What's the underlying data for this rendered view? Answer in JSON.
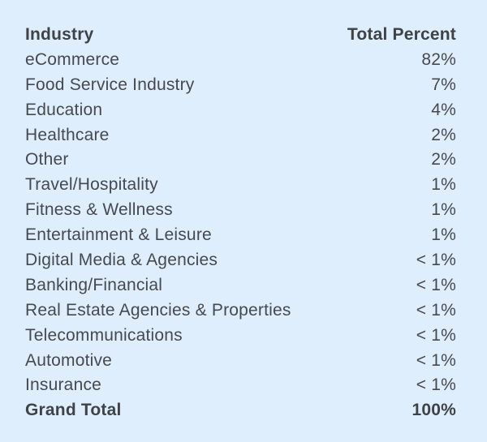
{
  "table": {
    "headers": [
      "Industry",
      "Total Percent"
    ],
    "rows": [
      [
        "eCommerce",
        "82%"
      ],
      [
        "Food Service Industry",
        "7%"
      ],
      [
        "Education",
        "4%"
      ],
      [
        "Healthcare",
        "2%"
      ],
      [
        "Other",
        "2%"
      ],
      [
        "Travel/Hospitality",
        "1%"
      ],
      [
        "Fitness & Wellness",
        "1%"
      ],
      [
        "Entertainment & Leisure",
        "1%"
      ],
      [
        "Digital Media & Agencies",
        "< 1%"
      ],
      [
        "Banking/Financial",
        "< 1%"
      ],
      [
        "Real Estate Agencies & Properties",
        "< 1%"
      ],
      [
        "Telecommunications",
        "< 1%"
      ],
      [
        "Automotive",
        "< 1%"
      ],
      [
        "Insurance",
        "< 1%"
      ]
    ],
    "total": [
      "Grand Total",
      "100%"
    ]
  },
  "chart_data": {
    "type": "table",
    "columns": [
      "Industry",
      "Total Percent"
    ],
    "rows": [
      {
        "Industry": "eCommerce",
        "Total Percent": "82%"
      },
      {
        "Industry": "Food Service Industry",
        "Total Percent": "7%"
      },
      {
        "Industry": "Education",
        "Total Percent": "4%"
      },
      {
        "Industry": "Healthcare",
        "Total Percent": "2%"
      },
      {
        "Industry": "Other",
        "Total Percent": "2%"
      },
      {
        "Industry": "Travel/Hospitality",
        "Total Percent": "1%"
      },
      {
        "Industry": "Fitness & Wellness",
        "Total Percent": "1%"
      },
      {
        "Industry": "Entertainment & Leisure",
        "Total Percent": "1%"
      },
      {
        "Industry": "Digital Media & Agencies",
        "Total Percent": "< 1%"
      },
      {
        "Industry": "Banking/Financial",
        "Total Percent": "< 1%"
      },
      {
        "Industry": "Real Estate Agencies & Properties",
        "Total Percent": "< 1%"
      },
      {
        "Industry": "Telecommunications",
        "Total Percent": "< 1%"
      },
      {
        "Industry": "Automotive",
        "Total Percent": "< 1%"
      },
      {
        "Industry": "Insurance",
        "Total Percent": "< 1%"
      },
      {
        "Industry": "Grand Total",
        "Total Percent": "100%"
      }
    ]
  }
}
